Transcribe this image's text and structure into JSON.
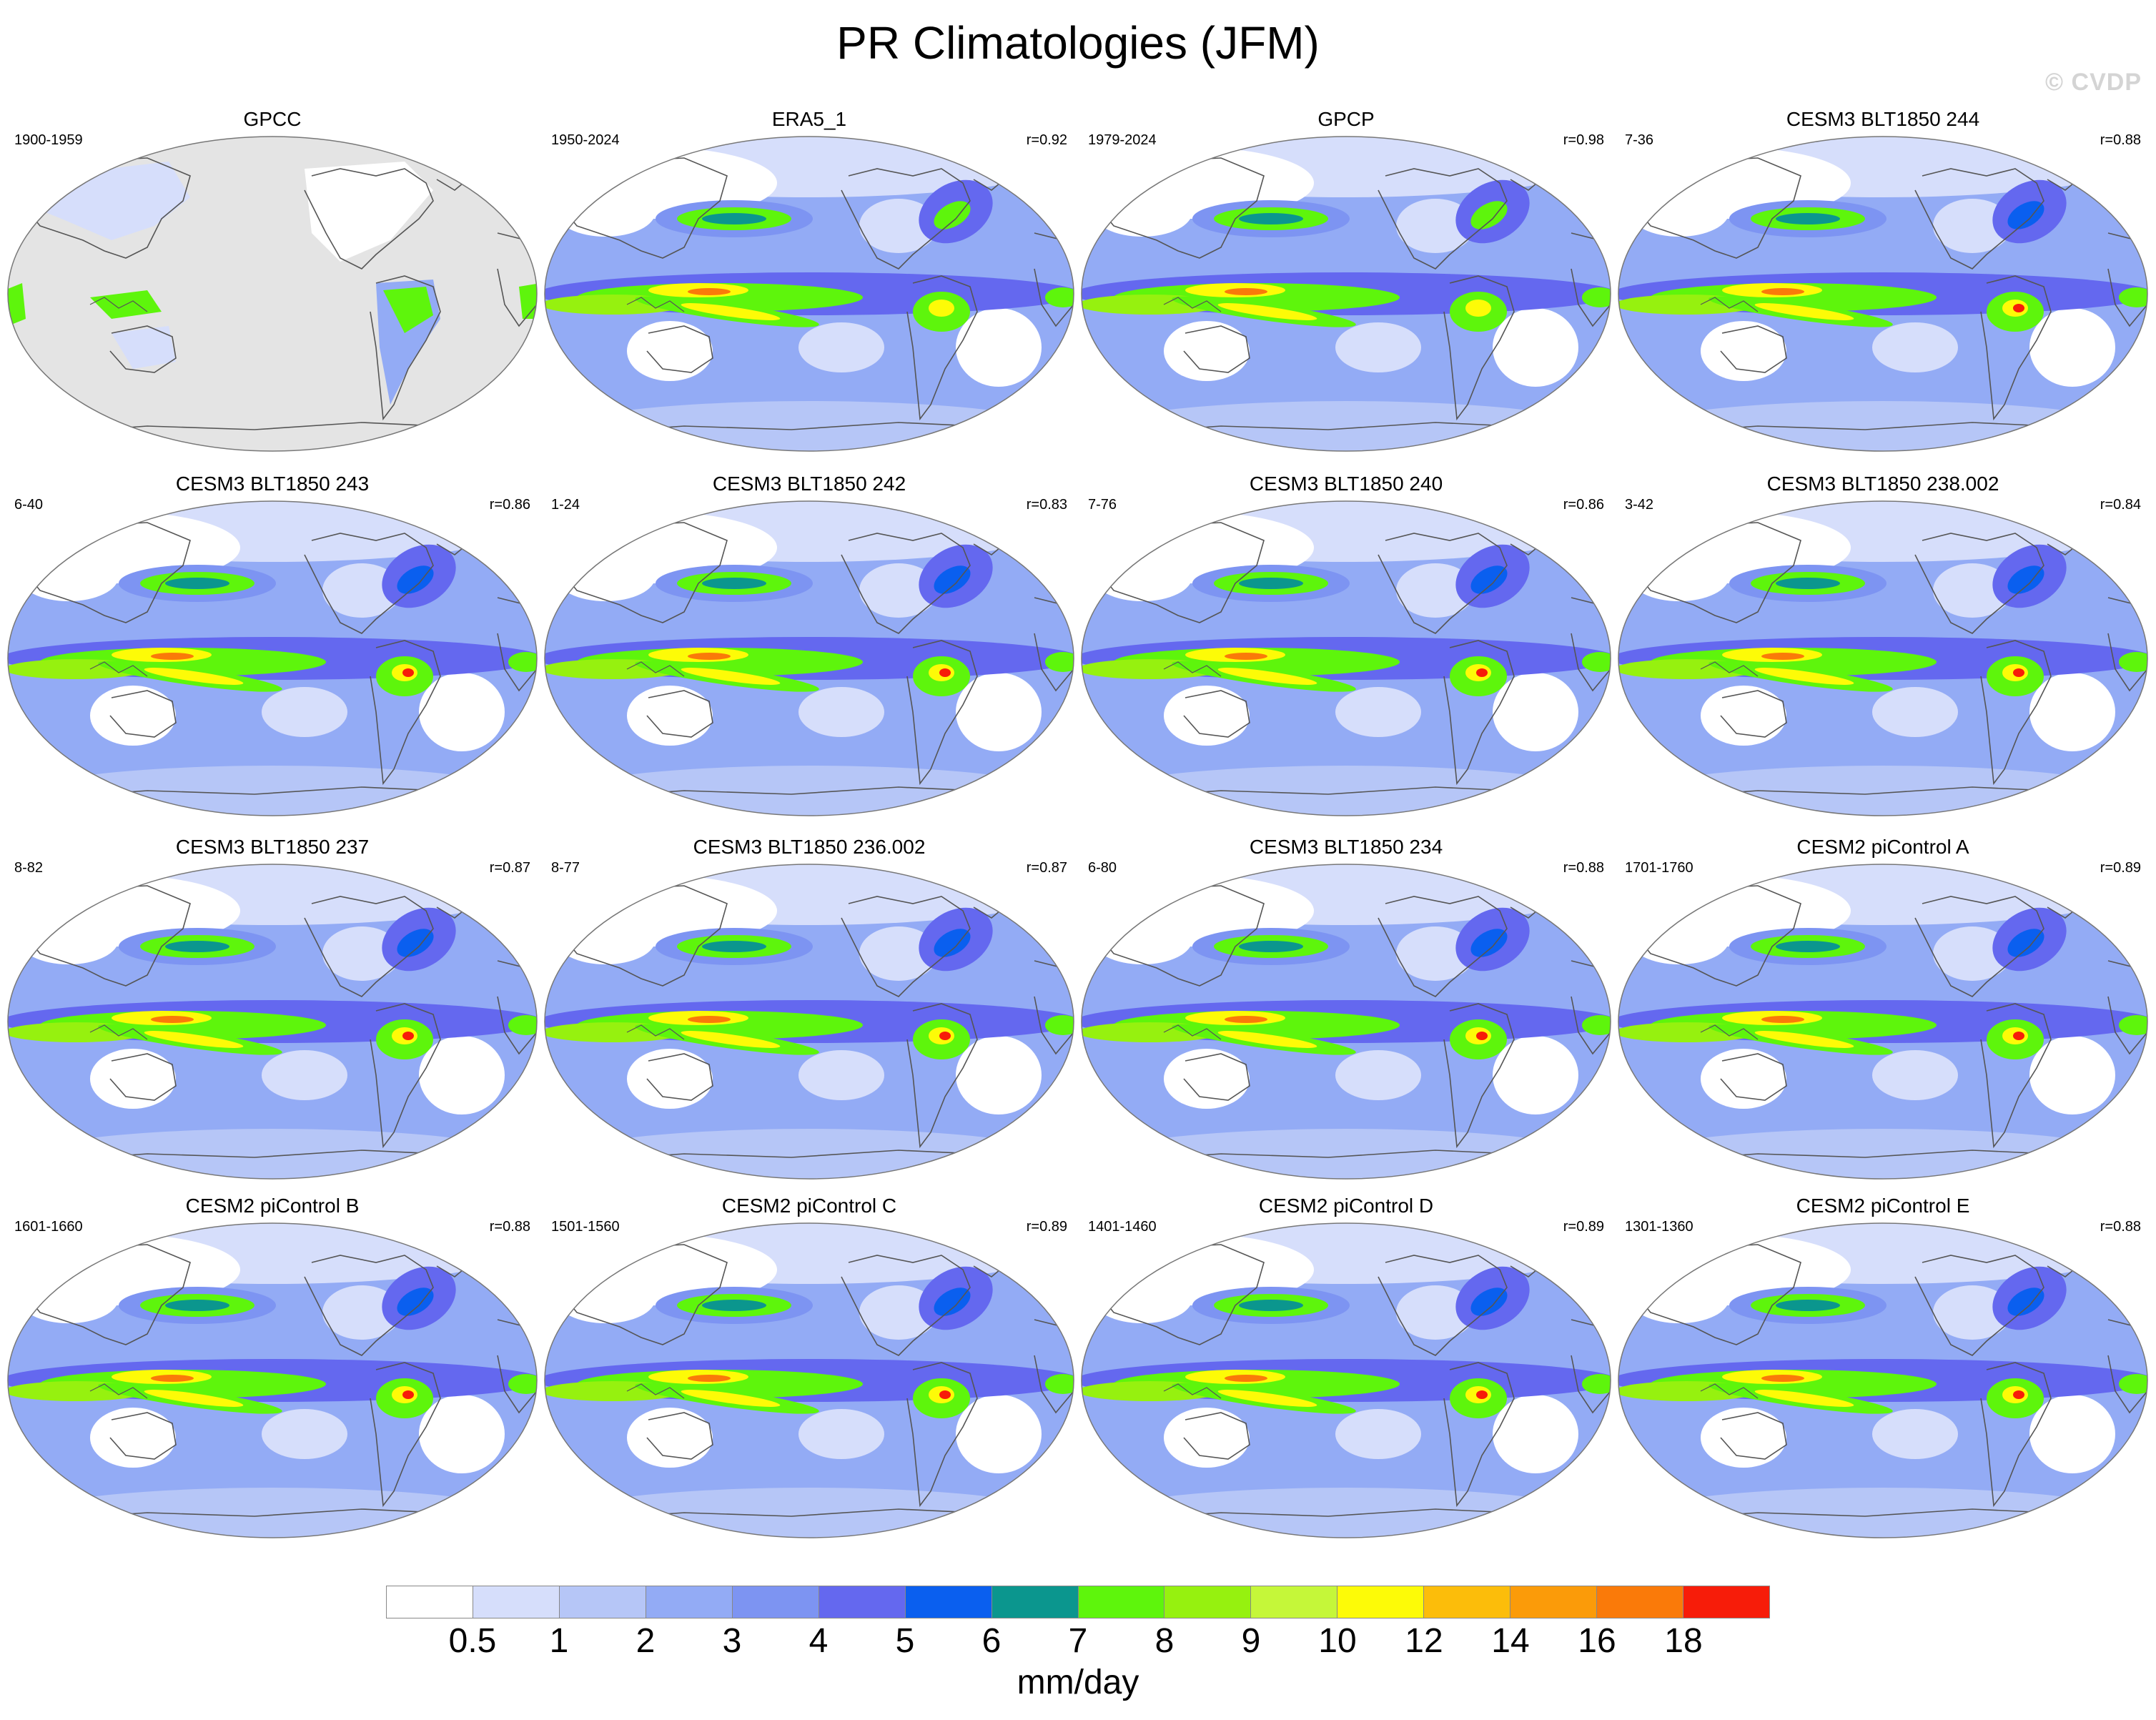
{
  "figure": {
    "title": "PR Climatologies (JFM)",
    "watermark": "© CVDP"
  },
  "panels": [
    {
      "name": "GPCC",
      "years": "1900-1959",
      "corr": "",
      "style": "obs-gpcc"
    },
    {
      "name": "ERA5_1",
      "years": "1950-2024",
      "corr": "r=0.92",
      "style": "obs"
    },
    {
      "name": "GPCP",
      "years": "1979-2024",
      "corr": "r=0.98",
      "style": "obs"
    },
    {
      "name": "CESM3 BLT1850 244",
      "years": "7-36",
      "corr": "r=0.88",
      "style": "model"
    },
    {
      "name": "CESM3 BLT1850 243",
      "years": "6-40",
      "corr": "r=0.86",
      "style": "model"
    },
    {
      "name": "CESM3 BLT1850 242",
      "years": "1-24",
      "corr": "r=0.83",
      "style": "model"
    },
    {
      "name": "CESM3 BLT1850 240",
      "years": "7-76",
      "corr": "r=0.86",
      "style": "model"
    },
    {
      "name": "CESM3 BLT1850 238.002",
      "years": "3-42",
      "corr": "r=0.84",
      "style": "model"
    },
    {
      "name": "CESM3 BLT1850 237",
      "years": "8-82",
      "corr": "r=0.87",
      "style": "model"
    },
    {
      "name": "CESM3 BLT1850 236.002",
      "years": "8-77",
      "corr": "r=0.87",
      "style": "model"
    },
    {
      "name": "CESM3 BLT1850 234",
      "years": "6-80",
      "corr": "r=0.88",
      "style": "model"
    },
    {
      "name": "CESM2 piControl A",
      "years": "1701-1760",
      "corr": "r=0.89",
      "style": "model"
    },
    {
      "name": "CESM2 piControl B",
      "years": "1601-1660",
      "corr": "r=0.88",
      "style": "model"
    },
    {
      "name": "CESM2 piControl C",
      "years": "1501-1560",
      "corr": "r=0.89",
      "style": "model"
    },
    {
      "name": "CESM2 piControl D",
      "years": "1401-1460",
      "corr": "r=0.89",
      "style": "model"
    },
    {
      "name": "CESM2 piControl E",
      "years": "1301-1360",
      "corr": "r=0.88",
      "style": "model"
    }
  ],
  "colorbar": {
    "units": "mm/day",
    "ticks": [
      "0.5",
      "1",
      "2",
      "3",
      "4",
      "5",
      "6",
      "7",
      "8",
      "9",
      "10",
      "12",
      "14",
      "16",
      "18"
    ],
    "colors": [
      "#ffffff",
      "#d6defb",
      "#b6c6f7",
      "#93abf5",
      "#7d94f2",
      "#6468ef",
      "#0a5fef",
      "#0b968e",
      "#5ef50c",
      "#96f10f",
      "#c5f739",
      "#fdfb07",
      "#fcbd0a",
      "#fb9b09",
      "#fa7a09",
      "#f71c09"
    ]
  },
  "colors": {
    "missing": "#e4e4e4",
    "coast": "#555555"
  }
}
